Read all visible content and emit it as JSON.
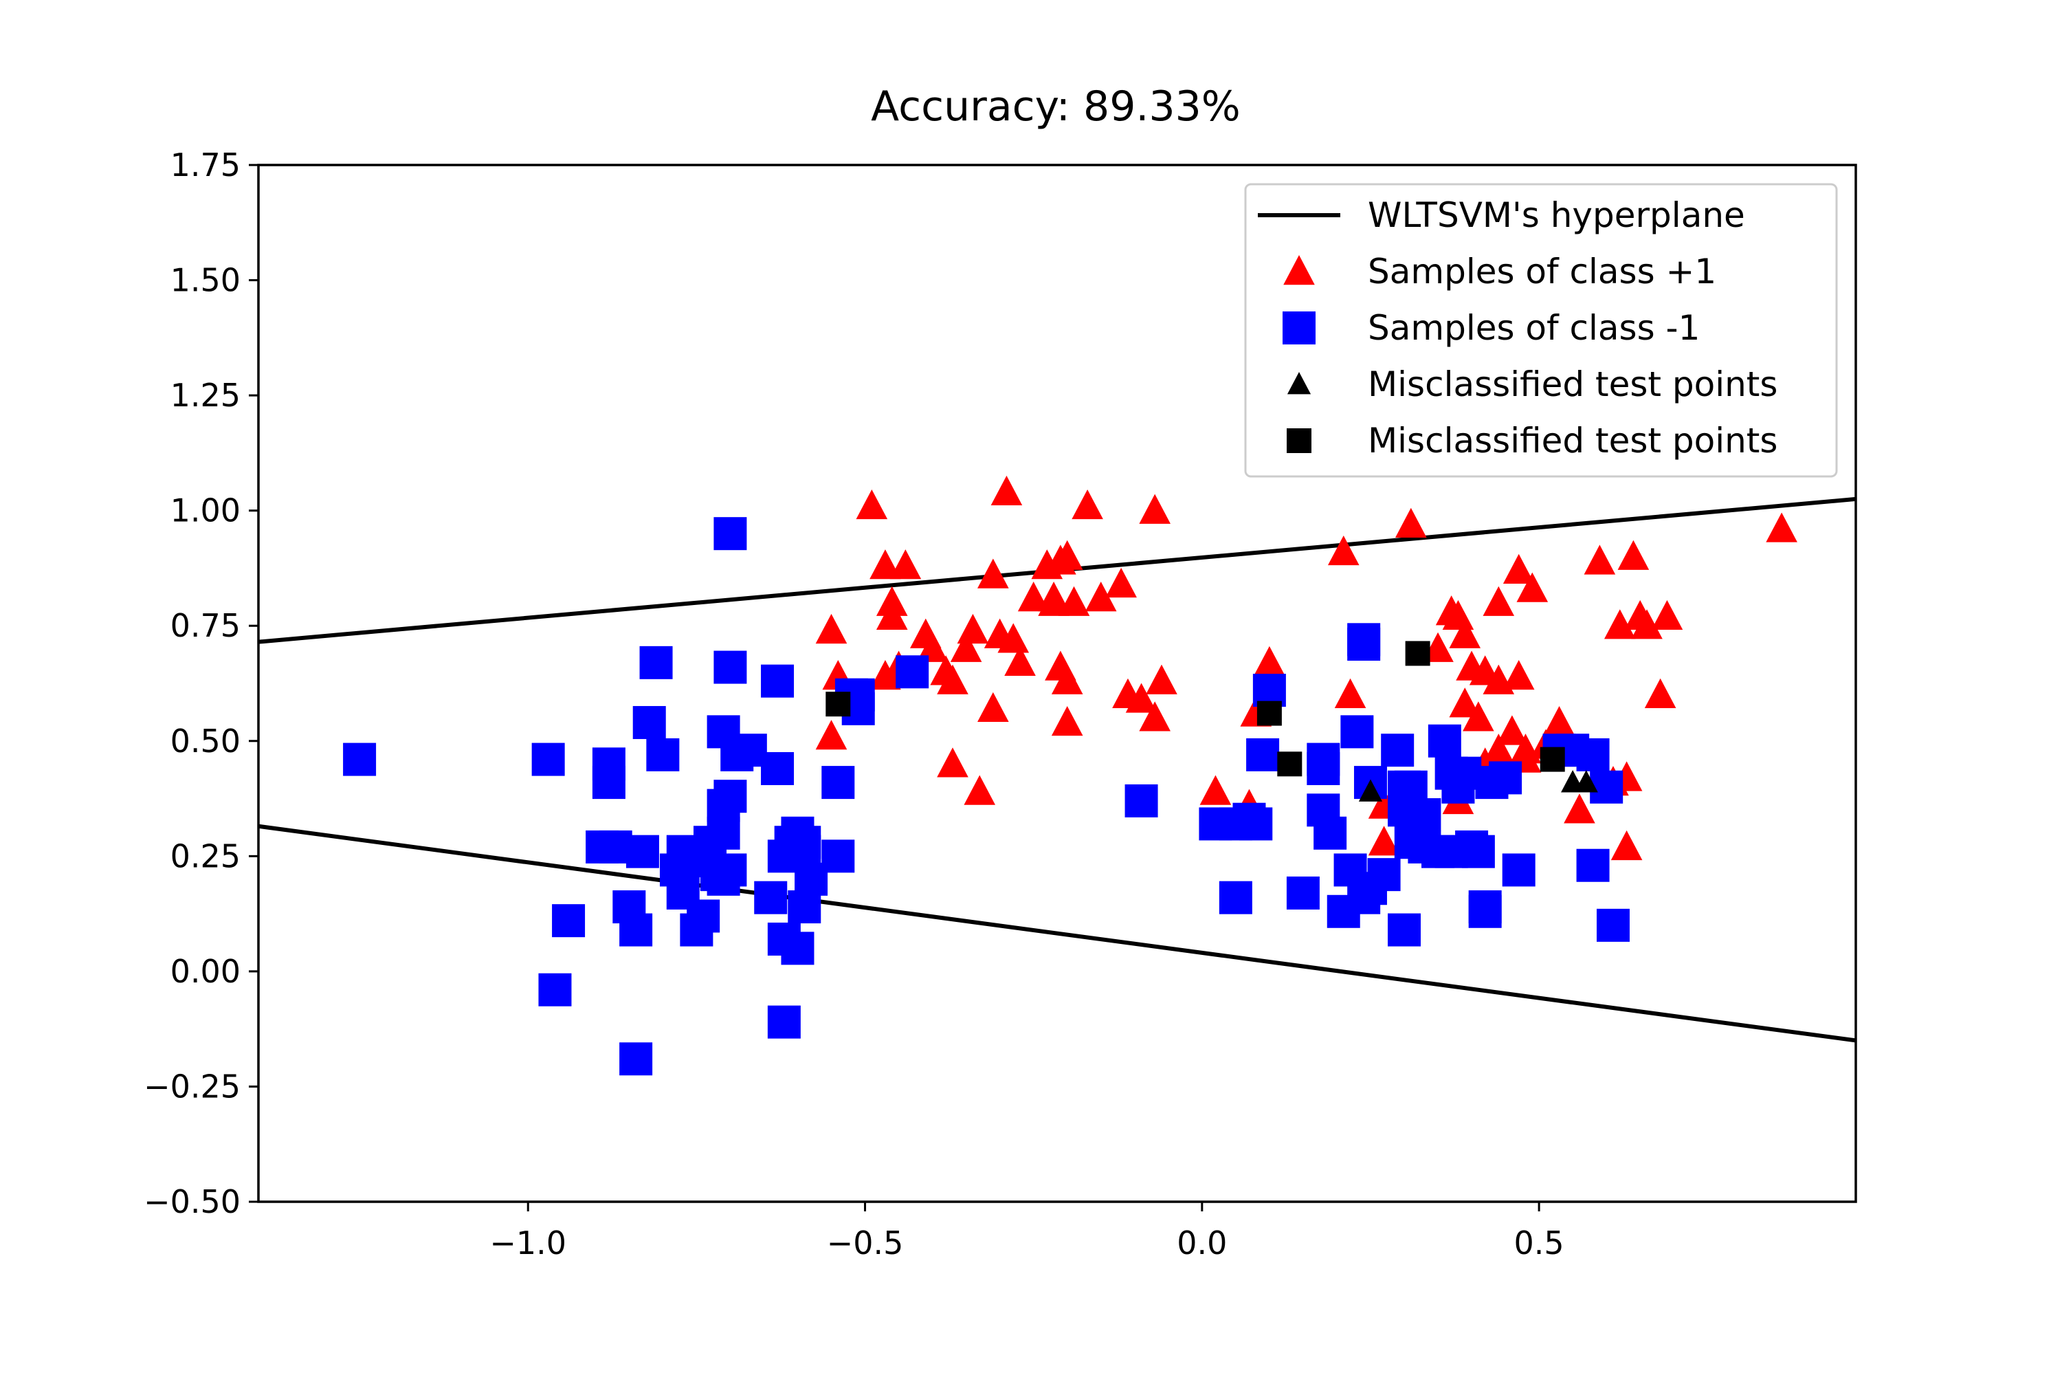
{
  "chart_data": {
    "type": "scatter",
    "title": "Accuracy: 89.33%",
    "xlabel": "",
    "ylabel": "",
    "xlim": [
      -1.4,
      0.97
    ],
    "ylim": [
      -0.5,
      1.75
    ],
    "grid": false,
    "x_ticks": [
      -1.0,
      -0.5,
      0.0,
      0.5
    ],
    "x_tick_labels": [
      "−1.0",
      "−0.5",
      "0.0",
      "0.5"
    ],
    "y_ticks": [
      -0.5,
      -0.25,
      0.0,
      0.25,
      0.5,
      0.75,
      1.0,
      1.25,
      1.5,
      1.75
    ],
    "y_tick_labels": [
      "−0.50",
      "−0.25",
      "0.00",
      "0.25",
      "0.50",
      "0.75",
      "1.00",
      "1.25",
      "1.50",
      "1.75"
    ],
    "legend_position": "top-right",
    "colors": {
      "hyperplane": "#000000",
      "class_pos": "#ff0000",
      "class_neg": "#0000ff",
      "misclassified": "#000000"
    },
    "legend": [
      {
        "marker": "line",
        "color": "#000000",
        "label": "WLTSVM's hyperplane"
      },
      {
        "marker": "triangle",
        "color": "#ff0000",
        "label": "Samples of class +1"
      },
      {
        "marker": "square",
        "color": "#0000ff",
        "label": "Samples of class -1"
      },
      {
        "marker": "triangle",
        "color": "#000000",
        "label": "Misclassified test points"
      },
      {
        "marker": "square",
        "color": "#000000",
        "label": "Misclassified test points"
      }
    ],
    "series": [
      {
        "name": "WLTSVM's hyperplane (upper)",
        "kind": "line",
        "x": [
          -1.4,
          0.97
        ],
        "y": [
          0.715,
          1.025
        ]
      },
      {
        "name": "WLTSVM's hyperplane (lower)",
        "kind": "line",
        "x": [
          -1.4,
          0.97
        ],
        "y": [
          0.315,
          -0.15
        ]
      },
      {
        "name": "Samples of class +1",
        "kind": "scatter",
        "marker": "triangle",
        "x": [
          -0.49,
          -0.29,
          -0.17,
          -0.07,
          -0.47,
          -0.44,
          -0.46,
          -0.46,
          -0.55,
          -0.54,
          -0.47,
          -0.45,
          -0.41,
          -0.4,
          -0.38,
          -0.37,
          -0.35,
          -0.34,
          -0.31,
          -0.3,
          -0.31,
          -0.28,
          -0.27,
          -0.25,
          -0.23,
          -0.22,
          -0.22,
          -0.21,
          -0.2,
          -0.19,
          -0.21,
          -0.2,
          -0.2,
          -0.15,
          -0.12,
          -0.11,
          -0.09,
          -0.07,
          -0.06,
          -0.55,
          -0.37,
          -0.33,
          0.21,
          0.31,
          0.1,
          0.02,
          0.08,
          0.22,
          0.27,
          0.37,
          0.35,
          0.39,
          0.38,
          0.4,
          0.39,
          0.42,
          0.41,
          0.44,
          0.44,
          0.47,
          0.47,
          0.49,
          0.48,
          0.44,
          0.42,
          0.46,
          0.48,
          0.53,
          0.51,
          0.56,
          0.59,
          0.62,
          0.64,
          0.66,
          0.61,
          0.63,
          0.65,
          0.69,
          0.68,
          0.86,
          0.07,
          0.38,
          0.27,
          0.63
        ],
        "y": [
          1.01,
          1.04,
          1.01,
          1.0,
          0.88,
          0.88,
          0.8,
          0.77,
          0.74,
          0.64,
          0.64,
          0.66,
          0.73,
          0.7,
          0.65,
          0.63,
          0.7,
          0.74,
          0.86,
          0.73,
          0.57,
          0.72,
          0.67,
          0.81,
          0.88,
          0.8,
          0.81,
          0.89,
          0.9,
          0.8,
          0.66,
          0.63,
          0.54,
          0.81,
          0.84,
          0.6,
          0.59,
          0.55,
          0.63,
          0.51,
          0.45,
          0.39,
          0.91,
          0.97,
          0.67,
          0.39,
          0.56,
          0.6,
          0.28,
          0.78,
          0.7,
          0.73,
          0.77,
          0.66,
          0.58,
          0.65,
          0.55,
          0.8,
          0.63,
          0.87,
          0.64,
          0.83,
          0.46,
          0.48,
          0.45,
          0.52,
          0.48,
          0.54,
          0.49,
          0.35,
          0.89,
          0.75,
          0.9,
          0.75,
          0.41,
          0.27,
          0.77,
          0.77,
          0.6,
          0.96,
          0.36,
          0.37,
          0.36,
          0.42
        ]
      },
      {
        "name": "Samples of class -1",
        "kind": "scatter",
        "marker": "square",
        "x": [
          -1.25,
          -0.97,
          -0.88,
          -0.88,
          -0.89,
          -0.83,
          -0.82,
          -0.8,
          -0.81,
          -0.87,
          -0.94,
          -0.85,
          -0.84,
          -0.96,
          -0.84,
          -0.77,
          -0.77,
          -0.78,
          -0.75,
          -0.74,
          -0.75,
          -0.73,
          -0.72,
          -0.71,
          -0.71,
          -0.71,
          -0.7,
          -0.7,
          -0.69,
          -0.67,
          -0.71,
          -0.7,
          -0.63,
          -0.63,
          -0.64,
          -0.62,
          -0.62,
          -0.62,
          -0.6,
          -0.61,
          -0.59,
          -0.6,
          -0.58,
          -0.59,
          -0.6,
          -0.59,
          -0.54,
          -0.54,
          -0.51,
          -0.52,
          -0.51,
          -0.43,
          -0.7,
          -0.09,
          0.02,
          0.05,
          0.07,
          0.08,
          0.1,
          0.09,
          0.05,
          0.15,
          0.18,
          0.18,
          0.18,
          0.19,
          0.21,
          0.22,
          0.23,
          0.24,
          0.24,
          0.24,
          0.25,
          0.25,
          0.27,
          0.29,
          0.3,
          0.3,
          0.31,
          0.31,
          0.33,
          0.33,
          0.35,
          0.36,
          0.38,
          0.39,
          0.4,
          0.41,
          0.42,
          0.42,
          0.43,
          0.45,
          0.47,
          0.53,
          0.55,
          0.58,
          0.58,
          0.6,
          0.61,
          0.3,
          0.3,
          0.37,
          0.37
        ],
        "y": [
          0.46,
          0.46,
          0.45,
          0.41,
          0.27,
          0.26,
          0.54,
          0.47,
          0.67,
          0.27,
          0.11,
          0.14,
          0.09,
          -0.04,
          -0.19,
          0.17,
          0.26,
          0.22,
          0.09,
          0.12,
          0.24,
          0.28,
          0.21,
          0.3,
          0.36,
          0.52,
          0.38,
          0.66,
          0.47,
          0.48,
          0.2,
          0.22,
          0.44,
          0.63,
          0.16,
          0.25,
          0.07,
          -0.11,
          0.05,
          0.28,
          0.14,
          0.29,
          0.2,
          0.28,
          0.3,
          0.26,
          0.41,
          0.25,
          0.57,
          0.6,
          0.6,
          0.65,
          0.95,
          0.37,
          0.32,
          0.32,
          0.33,
          0.32,
          0.61,
          0.47,
          0.16,
          0.17,
          0.35,
          0.44,
          0.46,
          0.3,
          0.13,
          0.22,
          0.52,
          0.71,
          0.72,
          0.16,
          0.18,
          0.41,
          0.21,
          0.48,
          0.09,
          0.36,
          0.4,
          0.28,
          0.34,
          0.27,
          0.26,
          0.5,
          0.4,
          0.43,
          0.27,
          0.26,
          0.14,
          0.13,
          0.41,
          0.42,
          0.22,
          0.48,
          0.48,
          0.47,
          0.23,
          0.4,
          0.1,
          0.35,
          0.4,
          0.43,
          0.26
        ]
      },
      {
        "name": "Misclassified test points (triangle)",
        "kind": "scatter",
        "marker": "triangle",
        "x": [
          0.25,
          0.55,
          0.57
        ],
        "y": [
          0.39,
          0.41,
          0.41
        ]
      },
      {
        "name": "Misclassified test points (square)",
        "kind": "scatter",
        "marker": "square",
        "x": [
          -0.54,
          0.1,
          0.13,
          0.32,
          0.52
        ],
        "y": [
          0.58,
          0.56,
          0.45,
          0.69,
          0.46
        ]
      }
    ]
  }
}
